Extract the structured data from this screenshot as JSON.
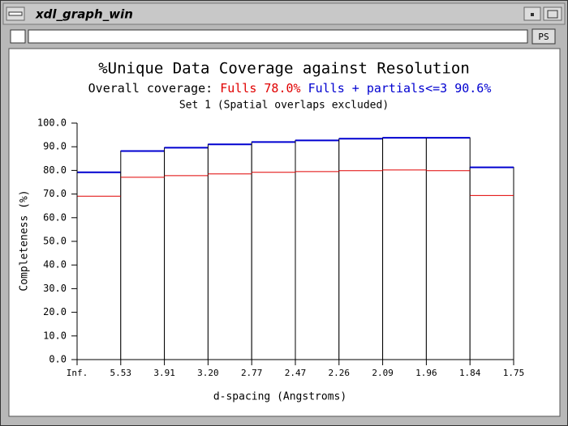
{
  "window": {
    "title": "xdl_graph_win",
    "button": "PS"
  },
  "chart_data": {
    "type": "histogram",
    "title": "%Unique Data Coverage against Resolution",
    "subtitle_prefix": "Overall coverage:",
    "subtitle2": "Set 1 (Spatial overlaps excluded)",
    "x_label": "d-spacing (Angstroms)",
    "y_label": "Completeness (%)",
    "bin_edges": [
      "Inf.",
      "5.53",
      "3.91",
      "3.20",
      "2.77",
      "2.47",
      "2.26",
      "2.09",
      "1.96",
      "1.84",
      "1.75"
    ],
    "series": [
      {
        "name": "Fulls",
        "color": "#e00000",
        "overall_label": "78.0%",
        "values": [
          69.1,
          77.1,
          77.8,
          78.5,
          79.2,
          79.5,
          79.9,
          80.2,
          79.9,
          69.4
        ]
      },
      {
        "name": "Fulls + partials<=3",
        "color": "#0000d0",
        "overall_label": "90.6%",
        "values": [
          79.2,
          88.2,
          89.6,
          91.0,
          92.0,
          92.7,
          93.4,
          93.8,
          93.8,
          81.3
        ]
      }
    ],
    "ylim": [
      0,
      100
    ],
    "yticks": [
      {
        "value": 0,
        "label": "0.0"
      },
      {
        "value": 10,
        "label": "10.0"
      },
      {
        "value": 20,
        "label": "20.0"
      },
      {
        "value": 30,
        "label": "30.0"
      },
      {
        "value": 40,
        "label": "40.0"
      },
      {
        "value": 50,
        "label": "50.0"
      },
      {
        "value": 60,
        "label": "60.0"
      },
      {
        "value": 70,
        "label": "70.0"
      },
      {
        "value": 80,
        "label": "80.0"
      },
      {
        "value": 90,
        "label": "90.0"
      },
      {
        "value": 100,
        "label": "100.0"
      }
    ]
  }
}
